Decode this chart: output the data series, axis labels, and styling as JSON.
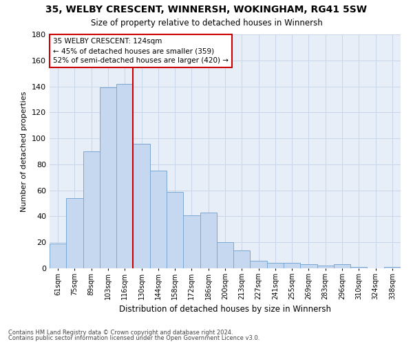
{
  "title1": "35, WELBY CRESCENT, WINNERSH, WOKINGHAM, RG41 5SW",
  "title2": "Size of property relative to detached houses in Winnersh",
  "xlabel": "Distribution of detached houses by size in Winnersh",
  "ylabel": "Number of detached properties",
  "categories": [
    "61sqm",
    "75sqm",
    "89sqm",
    "103sqm",
    "116sqm",
    "130sqm",
    "144sqm",
    "158sqm",
    "172sqm",
    "186sqm",
    "200sqm",
    "213sqm",
    "227sqm",
    "241sqm",
    "255sqm",
    "269sqm",
    "283sqm",
    "296sqm",
    "310sqm",
    "324sqm",
    "338sqm"
  ],
  "values": [
    19,
    54,
    90,
    139,
    142,
    96,
    75,
    59,
    41,
    43,
    20,
    14,
    6,
    4,
    4,
    3,
    2,
    3,
    1,
    0,
    1
  ],
  "bar_color": "#c5d8f0",
  "bar_edge_color": "#7aa8d4",
  "marker_bin_index": 5,
  "marker_color": "#cc0000",
  "annotation_line1": "35 WELBY CRESCENT: 124sqm",
  "annotation_line2": "← 45% of detached houses are smaller (359)",
  "annotation_line3": "52% of semi-detached houses are larger (420) →",
  "annotation_box_color": "#ffffff",
  "annotation_box_edge": "#cc0000",
  "grid_color": "#c8d4e8",
  "bg_color": "#e8eef8",
  "fig_bg_color": "#ffffff",
  "footer1": "Contains HM Land Registry data © Crown copyright and database right 2024.",
  "footer2": "Contains public sector information licensed under the Open Government Licence v3.0.",
  "ylim": [
    0,
    180
  ],
  "yticks": [
    0,
    20,
    40,
    60,
    80,
    100,
    120,
    140,
    160,
    180
  ]
}
